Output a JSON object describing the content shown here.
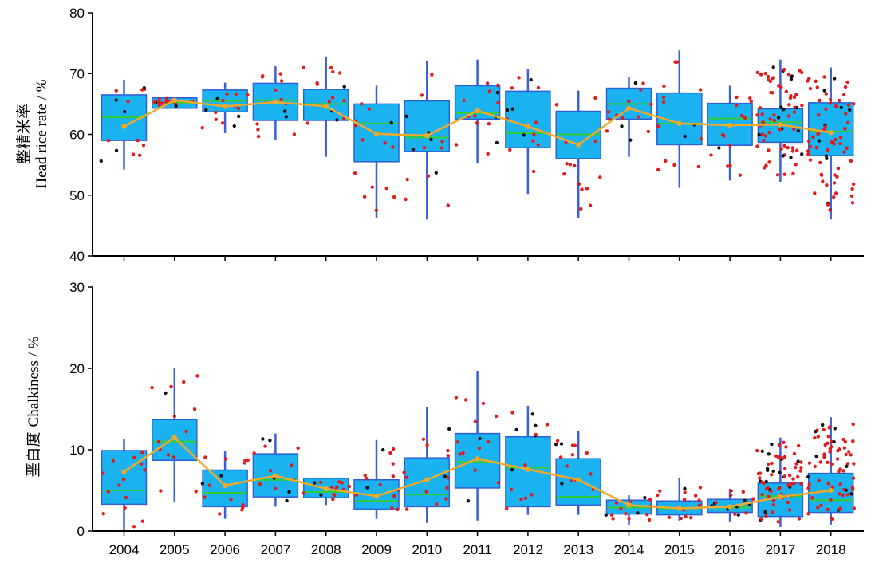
{
  "chart_data": [
    {
      "type": "box",
      "ylabel_cn": "整精米率",
      "ylabel_en": "Head rice rate / %",
      "ylim": [
        40,
        80
      ],
      "yticks": [
        40,
        50,
        60,
        70,
        80
      ],
      "categories": [
        "2004",
        "2005",
        "2006",
        "2007",
        "2008",
        "2009",
        "2010",
        "2011",
        "2012",
        "2013",
        "2014",
        "2015",
        "2016",
        "2017",
        "2018"
      ],
      "boxes": [
        {
          "min": 54.2,
          "q1": 59.0,
          "median": 62.8,
          "q3": 66.5,
          "max": 69.0
        },
        {
          "min": 64.3,
          "q1": 64.3,
          "median": 65.2,
          "q3": 66.0,
          "max": 66.0
        },
        {
          "min": 60.2,
          "q1": 63.7,
          "median": 65.5,
          "q3": 67.3,
          "max": 68.5
        },
        {
          "min": 59.0,
          "q1": 62.3,
          "median": 65.6,
          "q3": 68.4,
          "max": 71.2
        },
        {
          "min": 56.3,
          "q1": 62.3,
          "median": 65.0,
          "q3": 67.4,
          "max": 72.8
        },
        {
          "min": 46.3,
          "q1": 55.5,
          "median": 61.8,
          "q3": 65.0,
          "max": 68.0
        },
        {
          "min": 46.0,
          "q1": 57.2,
          "median": 59.5,
          "q3": 65.5,
          "max": 72.0
        },
        {
          "min": 55.2,
          "q1": 62.5,
          "median": 63.5,
          "q3": 68.0,
          "max": 72.3
        },
        {
          "min": 50.2,
          "q1": 57.8,
          "median": 60.2,
          "q3": 67.1,
          "max": 70.8
        },
        {
          "min": 46.3,
          "q1": 56.0,
          "median": 60.0,
          "q3": 63.8,
          "max": 67.2
        },
        {
          "min": 56.3,
          "q1": 62.5,
          "median": 65.0,
          "q3": 67.6,
          "max": 69.5
        },
        {
          "min": 51.2,
          "q1": 58.3,
          "median": 61.8,
          "q3": 66.8,
          "max": 73.8
        },
        {
          "min": 52.4,
          "q1": 58.2,
          "median": 62.6,
          "q3": 65.1,
          "max": 68.0
        },
        {
          "min": 52.2,
          "q1": 58.7,
          "median": 62.0,
          "q3": 64.2,
          "max": 72.3
        },
        {
          "min": 46.0,
          "q1": 56.5,
          "median": 60.5,
          "q3": 65.2,
          "max": 71.0
        }
      ],
      "means": [
        61.3,
        65.6,
        64.6,
        65.3,
        64.6,
        60.1,
        59.8,
        63.9,
        61.3,
        58.3,
        64.3,
        61.8,
        61.5,
        61.6,
        60.3
      ],
      "colors": {
        "box": "#1ab3f0",
        "box_edge": "#2e5fd6",
        "whisker": "#3a5fd8",
        "median": "#33cc33",
        "mean_line": "#f0a92a",
        "points_red": "#e31a1c",
        "points_black": "#111111"
      }
    },
    {
      "type": "box",
      "ylabel_cn": "垩白度",
      "ylabel_en": "Chalkiness / %",
      "ylim": [
        0,
        30
      ],
      "yticks": [
        0,
        10,
        20,
        30
      ],
      "categories": [
        "2004",
        "2005",
        "2006",
        "2007",
        "2008",
        "2009",
        "2010",
        "2011",
        "2012",
        "2013",
        "2014",
        "2015",
        "2016",
        "2017",
        "2018"
      ],
      "boxes": [
        {
          "min": 0.0,
          "q1": 3.3,
          "median": 5.0,
          "q3": 9.9,
          "max": 11.3
        },
        {
          "min": 3.5,
          "q1": 8.7,
          "median": 11.0,
          "q3": 13.7,
          "max": 20.0
        },
        {
          "min": 1.5,
          "q1": 3.0,
          "median": 4.7,
          "q3": 7.5,
          "max": 9.8
        },
        {
          "min": 3.0,
          "q1": 4.2,
          "median": 6.3,
          "q3": 9.5,
          "max": 12.0
        },
        {
          "min": 3.2,
          "q1": 4.1,
          "median": 4.8,
          "q3": 6.5,
          "max": 6.5
        },
        {
          "min": 1.5,
          "q1": 2.7,
          "median": 3.7,
          "q3": 6.3,
          "max": 11.2
        },
        {
          "min": 1.0,
          "q1": 3.0,
          "median": 4.5,
          "q3": 9.0,
          "max": 15.2
        },
        {
          "min": 1.3,
          "q1": 5.3,
          "median": 8.5,
          "q3": 12.0,
          "max": 19.7
        },
        {
          "min": 2.0,
          "q1": 3.0,
          "median": 7.8,
          "q3": 11.6,
          "max": 15.4
        },
        {
          "min": 2.0,
          "q1": 3.2,
          "median": 4.2,
          "q3": 8.9,
          "max": 12.3
        },
        {
          "min": 0.8,
          "q1": 2.1,
          "median": 2.9,
          "q3": 3.8,
          "max": 4.4
        },
        {
          "min": 1.3,
          "q1": 2.0,
          "median": 2.8,
          "q3": 3.7,
          "max": 6.5
        },
        {
          "min": 1.2,
          "q1": 2.3,
          "median": 2.9,
          "q3": 3.9,
          "max": 5.2
        },
        {
          "min": 0.5,
          "q1": 1.8,
          "median": 4.3,
          "q3": 5.9,
          "max": 11.5
        },
        {
          "min": 0.8,
          "q1": 2.3,
          "median": 3.8,
          "q3": 7.1,
          "max": 14.0
        }
      ],
      "means": [
        7.3,
        11.5,
        5.6,
        6.8,
        5.2,
        4.3,
        6.3,
        8.9,
        7.6,
        6.3,
        3.2,
        2.8,
        3.0,
        4.2,
        5.0
      ],
      "colors": {
        "box": "#1ab3f0",
        "box_edge": "#2e5fd6",
        "whisker": "#3a5fd8",
        "median": "#33cc33",
        "mean_line": "#f0a92a",
        "points_red": "#e31a1c",
        "points_black": "#111111"
      }
    }
  ]
}
